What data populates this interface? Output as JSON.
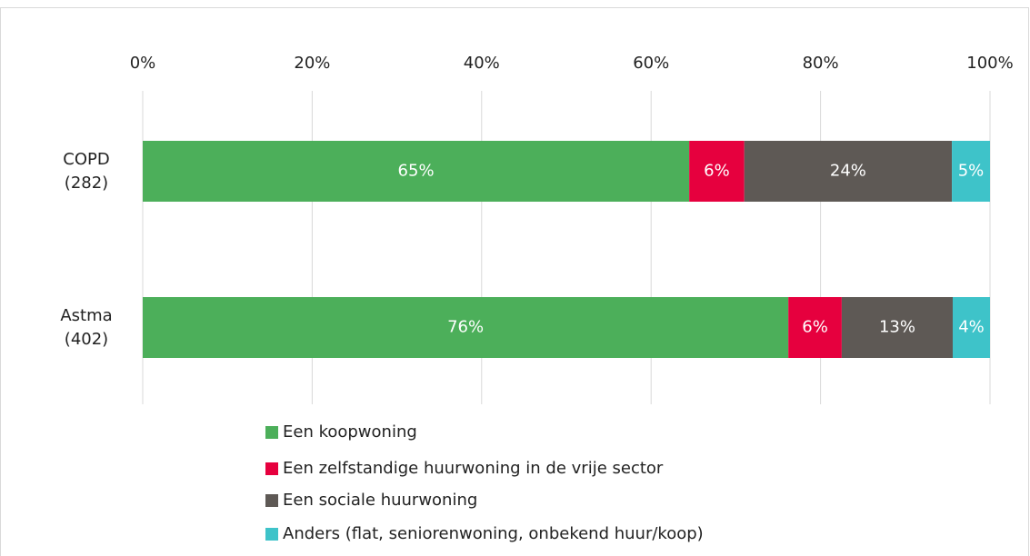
{
  "chart_data": {
    "type": "stacked-barh",
    "categories": [
      "COPD (282)",
      "Astma (402)"
    ],
    "series": [
      {
        "name": "Een koopwoning",
        "color": "#4caf5a",
        "values": [
          64.5,
          76.2
        ],
        "value_labels": [
          "65%",
          "76%"
        ]
      },
      {
        "name": "Een zelfstandige huurwoning in de vrije sector",
        "color": "#e6003e",
        "values": [
          6.5,
          6.3
        ],
        "value_labels": [
          "6%",
          "6%"
        ]
      },
      {
        "name": "Een sociale huurwoning",
        "color": "#5e5955",
        "values": [
          24.5,
          13.1
        ],
        "value_labels": [
          "24%",
          "13%"
        ]
      },
      {
        "name": "Anders (flat, seniorenwoning, onbekend huur/koop)",
        "color": "#3ec3c9",
        "values": [
          4.5,
          4.4
        ],
        "value_labels": [
          "5%",
          "4%"
        ]
      }
    ],
    "xlim": [
      0,
      100
    ],
    "xticks": [
      {
        "value": 0,
        "label": "0%"
      },
      {
        "value": 20,
        "label": "20%"
      },
      {
        "value": 40,
        "label": "40%"
      },
      {
        "value": 60,
        "label": "60%"
      },
      {
        "value": 80,
        "label": "80%"
      },
      {
        "value": 100,
        "label": "100%"
      }
    ],
    "grid": true,
    "legend": "bottom"
  }
}
